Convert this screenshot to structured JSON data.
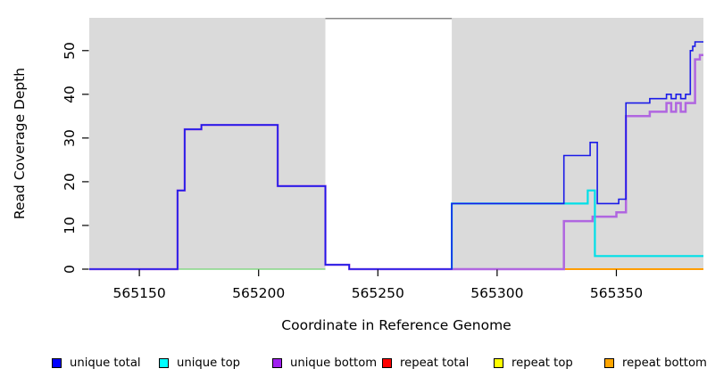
{
  "chart_data": {
    "type": "line",
    "title": "",
    "xlabel": "Coordinate in Reference Genome",
    "ylabel": "Read Coverage Depth",
    "xlim": [
      565129,
      565386.5
    ],
    "ylim": [
      0,
      57.5
    ],
    "grid": false,
    "legend_position": "bottom",
    "background_color": "#FFFFFF",
    "region_color": "#DADADA",
    "tick_color": "#000000",
    "x_ticks": [
      {
        "value": 565150,
        "label": "565150"
      },
      {
        "value": 565200,
        "label": "565200"
      },
      {
        "value": 565250,
        "label": "565250"
      },
      {
        "value": 565300,
        "label": "565300"
      },
      {
        "value": 565350,
        "label": "565350"
      }
    ],
    "y_ticks": [
      {
        "value": 0,
        "label": "0"
      },
      {
        "value": 10,
        "label": "10"
      },
      {
        "value": 20,
        "label": "20"
      },
      {
        "value": 30,
        "label": "30"
      },
      {
        "value": 40,
        "label": "40"
      },
      {
        "value": 50,
        "label": "50"
      }
    ],
    "shaded_regions": [
      {
        "x0": 565129,
        "x1": 565228
      },
      {
        "x0": 565281,
        "x1": 565386.5
      }
    ],
    "gap_top_line": {
      "x0": 565228,
      "x1": 565281,
      "color": "#888888"
    },
    "legend": [
      {
        "label": "unique total",
        "color": "#0000FF"
      },
      {
        "label": "unique top",
        "color": "#00FFFF"
      },
      {
        "label": "unique bottom",
        "color": "#A020F0"
      },
      {
        "label": "repeat total",
        "color": "#FF0000"
      },
      {
        "label": "repeat top",
        "color": "#FFFF00"
      },
      {
        "label": "repeat bottom",
        "color": "#FFA500"
      }
    ],
    "series": [
      {
        "name": "overlap-artifact-green",
        "label": "",
        "color": "#85D685",
        "stroke_width": 1.6,
        "points": [
          [
            565166,
            0
          ],
          [
            565228,
            0
          ]
        ]
      },
      {
        "name": "repeat-top",
        "label": "repeat top",
        "color": "#FFFF00",
        "stroke_width": 1.6,
        "points": []
      },
      {
        "name": "repeat-bottom",
        "label": "repeat bottom",
        "color": "#FF9D00",
        "stroke_width": 2,
        "points": [
          [
            565328,
            0
          ],
          [
            565386.5,
            0
          ]
        ]
      },
      {
        "name": "repeat-total",
        "label": "repeat total",
        "color": "#E03355",
        "stroke_width": 1.6,
        "points": [
          [
            565281,
            0
          ],
          [
            565328,
            0
          ]
        ]
      },
      {
        "name": "unique-bottom",
        "label": "unique bottom",
        "color": "#B066E0",
        "stroke_width": 2.5,
        "points": [
          [
            565129,
            0
          ],
          [
            565166,
            0
          ],
          [
            565166,
            18
          ],
          [
            565169,
            18
          ],
          [
            565169,
            32
          ],
          [
            565176,
            32
          ],
          [
            565176,
            33
          ],
          [
            565208,
            33
          ],
          [
            565208,
            19
          ],
          [
            565228,
            19
          ],
          [
            565228,
            1
          ],
          [
            565238,
            1
          ],
          [
            565238,
            0
          ],
          [
            565328,
            0
          ],
          [
            565328,
            11
          ],
          [
            565340,
            11
          ],
          [
            565340,
            12
          ],
          [
            565350,
            12
          ],
          [
            565350,
            13
          ],
          [
            565354,
            13
          ],
          [
            565354,
            35
          ],
          [
            565364,
            35
          ],
          [
            565364,
            36
          ],
          [
            565371,
            36
          ],
          [
            565371,
            38
          ],
          [
            565373,
            38
          ],
          [
            565373,
            36
          ],
          [
            565375,
            36
          ],
          [
            565375,
            38
          ],
          [
            565377,
            38
          ],
          [
            565377,
            36
          ],
          [
            565379,
            36
          ],
          [
            565379,
            38
          ],
          [
            565383,
            38
          ],
          [
            565383,
            48
          ],
          [
            565385,
            48
          ],
          [
            565385,
            49
          ],
          [
            565386.5,
            49
          ]
        ]
      },
      {
        "name": "unique-top",
        "label": "unique top",
        "color": "#00E0E8",
        "stroke_width": 2.2,
        "points": [
          [
            565281,
            0
          ],
          [
            565281,
            15
          ],
          [
            565338,
            15
          ],
          [
            565338,
            18
          ],
          [
            565341,
            18
          ],
          [
            565341,
            3
          ],
          [
            565386.5,
            3
          ]
        ]
      },
      {
        "name": "unique-total",
        "label": "unique total",
        "color": "#1A1AE8",
        "stroke_width": 1.6,
        "points": [
          [
            565129,
            0
          ],
          [
            565166,
            0
          ],
          [
            565166,
            18
          ],
          [
            565169,
            18
          ],
          [
            565169,
            32
          ],
          [
            565176,
            32
          ],
          [
            565176,
            33
          ],
          [
            565208,
            33
          ],
          [
            565208,
            19
          ],
          [
            565228,
            19
          ],
          [
            565228,
            1
          ],
          [
            565238,
            1
          ],
          [
            565238,
            0
          ],
          [
            565281,
            0
          ],
          [
            565281,
            15
          ],
          [
            565328,
            15
          ],
          [
            565328,
            26
          ],
          [
            565339,
            26
          ],
          [
            565339,
            29
          ],
          [
            565342,
            29
          ],
          [
            565342,
            15
          ],
          [
            565351,
            15
          ],
          [
            565351,
            16
          ],
          [
            565354,
            16
          ],
          [
            565354,
            38
          ],
          [
            565364,
            38
          ],
          [
            565364,
            39
          ],
          [
            565371,
            39
          ],
          [
            565371,
            40
          ],
          [
            565373,
            40
          ],
          [
            565373,
            39
          ],
          [
            565375,
            39
          ],
          [
            565375,
            40
          ],
          [
            565377,
            40
          ],
          [
            565377,
            39
          ],
          [
            565379,
            39
          ],
          [
            565379,
            40
          ],
          [
            565381,
            40
          ],
          [
            565381,
            50
          ],
          [
            565382,
            50
          ],
          [
            565382,
            51
          ],
          [
            565383,
            51
          ],
          [
            565383,
            52
          ],
          [
            565386.5,
            52
          ]
        ]
      }
    ]
  }
}
